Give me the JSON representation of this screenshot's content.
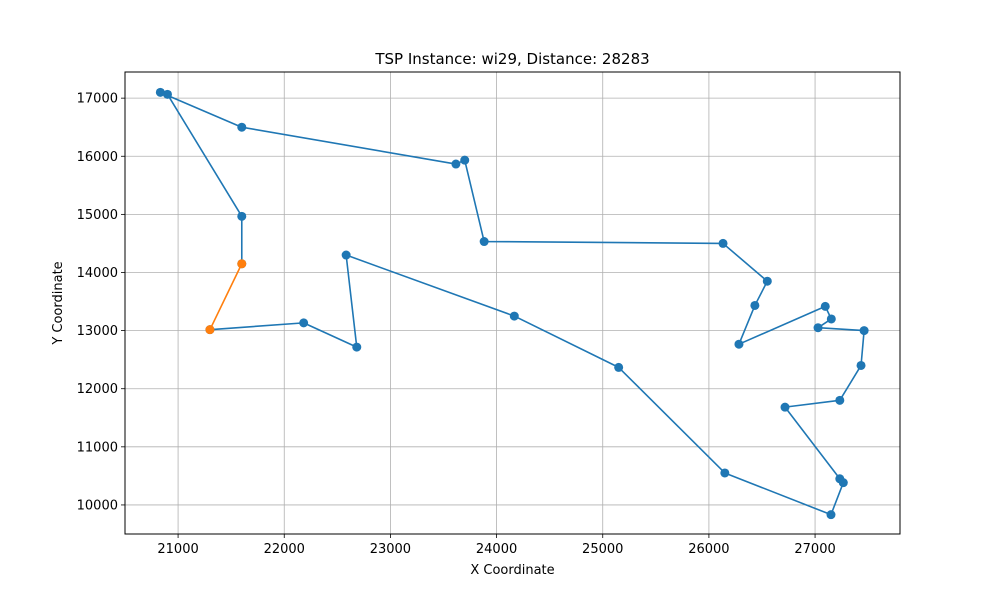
{
  "chart_data": {
    "type": "line",
    "title": "TSP Instance: wi29, Distance: 28283",
    "xlabel": "X Coordinate",
    "ylabel": "Y Coordinate",
    "xlim": [
      20500,
      27800
    ],
    "ylim": [
      9500,
      17450
    ],
    "xticks": [
      21000,
      22000,
      23000,
      24000,
      25000,
      26000,
      27000
    ],
    "yticks": [
      10000,
      11000,
      12000,
      13000,
      14000,
      15000,
      16000,
      17000
    ],
    "grid": true,
    "series": [
      {
        "role": "tour",
        "color": "#1f77b4",
        "x": [
          21600,
          21600,
          20900,
          20833,
          21600,
          23617,
          23700,
          23883,
          26133,
          26550,
          26433,
          26283,
          27096,
          27153,
          27028,
          27462,
          27433,
          27233,
          26717,
          27233,
          27266,
          27150,
          26150,
          25150,
          24167,
          22583,
          22683,
          22183,
          21300
        ],
        "y": [
          14150,
          14966,
          17066,
          17100,
          16500,
          15866,
          15933,
          14533,
          14500,
          13850,
          13433,
          12766,
          13417,
          13200,
          13050,
          13000,
          12400,
          11800,
          11683,
          10450,
          10383,
          9833,
          10550,
          12367,
          13250,
          14300,
          12716,
          13133,
          13016
        ]
      },
      {
        "role": "closing-edge",
        "color": "#ff7f0e",
        "x": [
          21300,
          21600
        ],
        "y": [
          13016,
          14150
        ]
      }
    ]
  }
}
